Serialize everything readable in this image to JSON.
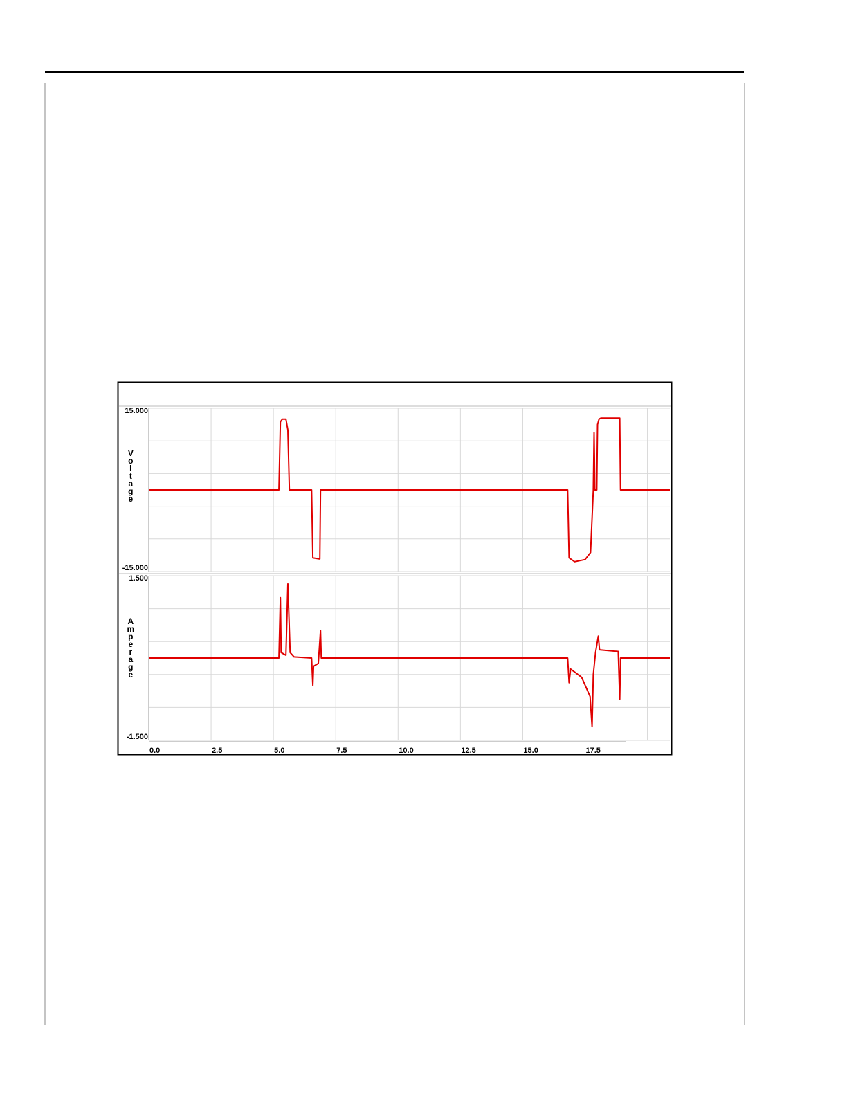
{
  "chart_data": [
    {
      "type": "line",
      "y_label": "Voltage",
      "x": [
        0,
        5.22,
        5.28,
        5.36,
        5.5,
        5.58,
        5.64,
        6.53,
        6.58,
        6.86,
        6.89,
        16.8,
        16.86,
        17.08,
        17.5,
        17.72,
        17.83,
        17.86,
        17.89,
        17.97,
        18.0,
        18.06,
        18.14,
        18.89,
        18.92,
        20.9
      ],
      "series": [
        {
          "color": "#e00000",
          "values": [
            0,
            0,
            12.5,
            13,
            13,
            11,
            0,
            0,
            -12.5,
            -12.7,
            0,
            0,
            -12.5,
            -13.2,
            -12.8,
            -11.5,
            0,
            10.5,
            0,
            0,
            12,
            13,
            13.2,
            13.2,
            0,
            0
          ]
        }
      ],
      "xlim": [
        0,
        20.9
      ],
      "ylim": [
        -15,
        15
      ],
      "yticks": [
        {
          "value": 15,
          "label": "15.000"
        },
        {
          "value": -15,
          "label": "-15.000"
        }
      ],
      "ygrid": [
        9,
        3,
        -3,
        -9
      ],
      "xgrid": [
        2.5,
        5,
        7.5,
        10,
        12.5,
        15,
        17.5,
        20
      ]
    },
    {
      "type": "line",
      "y_label": "Amperage",
      "x": [
        0,
        5.22,
        5.28,
        5.31,
        5.5,
        5.58,
        5.67,
        5.83,
        6.53,
        6.58,
        6.61,
        6.8,
        6.89,
        6.92,
        16.8,
        16.86,
        16.92,
        17.36,
        17.7,
        17.78,
        17.83,
        17.92,
        18.03,
        18.08,
        18.83,
        18.89,
        18.92,
        20.9
      ],
      "series": [
        {
          "color": "#e00000",
          "values": [
            0,
            0,
            1.1,
            0.1,
            0.05,
            1.35,
            0.1,
            0.02,
            0,
            -0.5,
            -0.15,
            -0.1,
            0.5,
            0,
            0,
            -0.45,
            -0.2,
            -0.35,
            -0.7,
            -1.25,
            -0.3,
            0.1,
            0.4,
            0.15,
            0.12,
            -0.75,
            0,
            0
          ]
        }
      ],
      "xlim": [
        0,
        20.9
      ],
      "ylim": [
        -1.5,
        1.5
      ],
      "yticks": [
        {
          "value": 1.5,
          "label": "1.500"
        },
        {
          "value": -1.5,
          "label": "-1.500"
        }
      ],
      "ygrid": [
        0.9,
        0.3,
        -0.3,
        -0.9
      ],
      "xgrid": [
        2.5,
        5,
        7.5,
        10,
        12.5,
        15,
        17.5,
        20
      ],
      "xticks": [
        {
          "value": 0,
          "label": "0.0"
        },
        {
          "value": 2.5,
          "label": "2.5"
        },
        {
          "value": 5,
          "label": "5.0"
        },
        {
          "value": 7.5,
          "label": "7.5"
        },
        {
          "value": 10,
          "label": "10.0"
        },
        {
          "value": 12.5,
          "label": "12.5"
        },
        {
          "value": 15,
          "label": "15.0"
        },
        {
          "value": 17.5,
          "label": "17.5"
        }
      ]
    }
  ]
}
